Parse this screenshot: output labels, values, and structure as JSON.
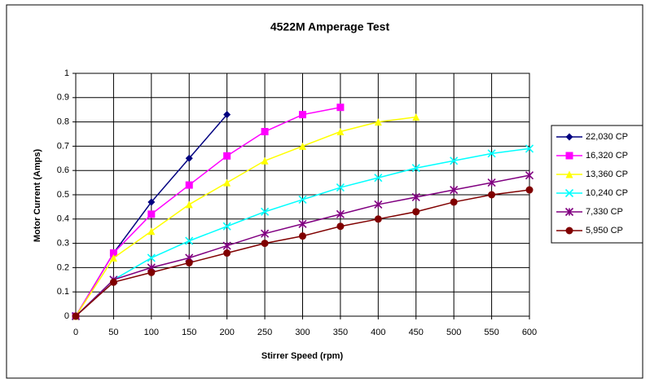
{
  "chart_data": {
    "type": "line",
    "title": "4522M Amperage Test",
    "x_label": "Stirrer Speed (rpm)",
    "y_label": "Motor Current (Amps)",
    "x": [
      0,
      50,
      100,
      150,
      200,
      250,
      300,
      350,
      400,
      450,
      500,
      550,
      600
    ],
    "series": [
      {
        "name": "22,030 CP",
        "color": "#000080",
        "marker": "diamond",
        "values": [
          0,
          0.26,
          0.47,
          0.65,
          0.83,
          null,
          null,
          null,
          null,
          null,
          null,
          null,
          null
        ]
      },
      {
        "name": "16,320 CP",
        "color": "#ff00ff",
        "marker": "square",
        "values": [
          0,
          0.26,
          0.42,
          0.54,
          0.66,
          0.76,
          0.83,
          0.86,
          null,
          null,
          null,
          null,
          null
        ]
      },
      {
        "name": "13,360 CP",
        "color": "#ffff00",
        "marker": "triangle",
        "values": [
          0,
          0.24,
          0.35,
          0.46,
          0.55,
          0.64,
          0.7,
          0.76,
          0.8,
          0.82,
          null,
          null,
          null
        ]
      },
      {
        "name": "10,240 CP",
        "color": "#00ffff",
        "marker": "x",
        "values": [
          0,
          0.15,
          0.24,
          0.31,
          0.37,
          0.43,
          0.48,
          0.53,
          0.57,
          0.61,
          0.64,
          0.67,
          0.69
        ]
      },
      {
        "name": "7,330 CP",
        "color": "#800080",
        "marker": "star",
        "values": [
          0,
          0.15,
          0.2,
          0.24,
          0.29,
          0.34,
          0.38,
          0.42,
          0.46,
          0.49,
          0.52,
          0.55,
          0.58
        ]
      },
      {
        "name": "5,950 CP",
        "color": "#800000",
        "marker": "circle",
        "values": [
          0,
          0.14,
          0.18,
          0.22,
          0.26,
          0.3,
          0.33,
          0.37,
          0.4,
          0.43,
          0.47,
          0.5,
          0.52
        ]
      }
    ],
    "xlim": [
      0,
      600
    ],
    "xticks": [
      0,
      50,
      100,
      150,
      200,
      250,
      300,
      350,
      400,
      450,
      500,
      550,
      600
    ],
    "ylim": [
      0,
      1
    ],
    "yticks": [
      0,
      0.1,
      0.2,
      0.3,
      0.4,
      0.5,
      0.6,
      0.7,
      0.8,
      0.9,
      1
    ],
    "grid": true,
    "legend": "right"
  }
}
